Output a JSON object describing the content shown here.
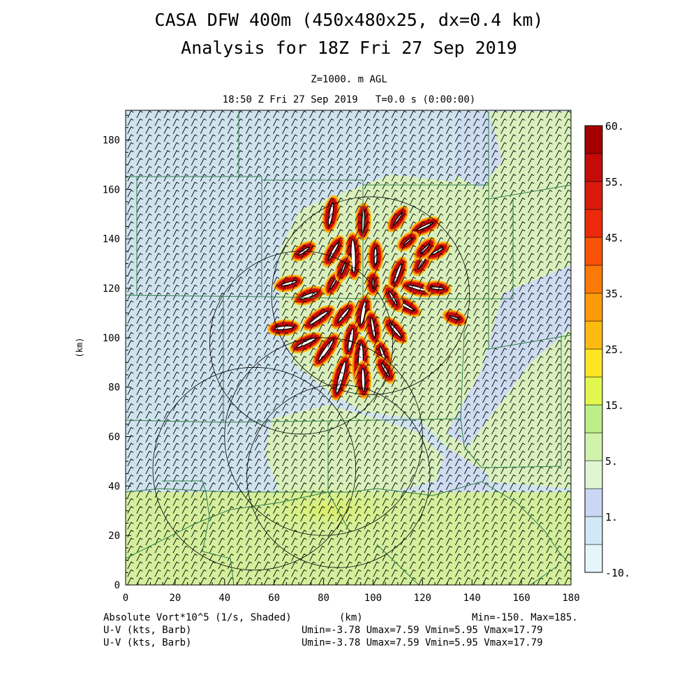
{
  "header": {
    "title_line1": "CASA DFW 400m (450x480x25, dx=0.4 km)",
    "title_line2": "Analysis for 18Z Fri 27 Sep 2019",
    "level": "Z=1000. m AGL",
    "valid_time": "18:50 Z Fri 27 Sep 2019   T=0.0 s (0:00:00)"
  },
  "footer": {
    "field_label": "Absolute Vort*10^5 (1/s, Shaded)",
    "xunit": "(km)",
    "minmax": "Min=-150. Max=185.",
    "barb1_label": "U-V (kts, Barb)",
    "barb1_stats": "Umin=-3.78 Umax=7.59 Vmin=5.95 Vmax=17.79",
    "barb2_label": "U-V (kts, Barb)",
    "barb2_stats": "Umin=-3.78 Umax=7.59 Vmin=5.95 Vmax=17.79"
  },
  "colors": {
    "level_fills": [
      "#e6f5fc",
      "#d2e8f7",
      "#cad6f3",
      "#e2f5d2",
      "#d0f2aa",
      "#bdee8a",
      "#e2f650",
      "#fde524",
      "#fdbb12",
      "#fc9a0a",
      "#fa7908",
      "#f95209",
      "#eb290b",
      "#d91a0c",
      "#c50b0a",
      "#a50000"
    ],
    "background_field": "#cfe3ef",
    "county_lines": "#2e7d47",
    "radar_rings": "#000000",
    "barbs": "#000000",
    "vortex_core": "#ffffff"
  },
  "chart_data": {
    "type": "heatmap",
    "title": "CASA DFW 400m (450x480x25, dx=0.4 km)",
    "subtitle": "Analysis for 18Z Fri 27 Sep 2019",
    "xlabel": "(km)",
    "ylabel": "(km)",
    "xlim": [
      0,
      180
    ],
    "ylim": [
      0,
      192
    ],
    "x_ticks": [
      0,
      20,
      40,
      60,
      80,
      100,
      120,
      140,
      160,
      180
    ],
    "y_ticks": [
      0,
      20,
      40,
      60,
      80,
      100,
      120,
      140,
      160,
      180
    ],
    "x_tick_labels": [
      "0",
      "20",
      "40",
      "60",
      "80",
      "100",
      "120",
      "140",
      "160",
      "180"
    ],
    "y_tick_labels": [
      "0",
      "20",
      "40",
      "60",
      "80",
      "100",
      "120",
      "140",
      "160",
      "180"
    ],
    "field": "Absolute Vort*10^5 (1/s, Shaded)",
    "field_min": -150,
    "field_max": 185,
    "colorbar": {
      "levels": [
        -10,
        1,
        5,
        15,
        25,
        35,
        45,
        55,
        60
      ],
      "labels": [
        "-10.",
        "1.",
        "5.",
        "15.",
        "25.",
        "35.",
        "45.",
        "55.",
        "60."
      ]
    },
    "radar_rings": [
      {
        "cx": 99,
        "cy": 117,
        "r": 40
      },
      {
        "cx": 71,
        "cy": 98,
        "r": 37
      },
      {
        "cx": 52,
        "cy": 47,
        "r": 41
      },
      {
        "cx": 80,
        "cy": 60,
        "r": 40
      },
      {
        "cx": 86,
        "cy": 44,
        "r": 37
      }
    ],
    "wind_barbs": {
      "u_min": -3.78,
      "u_max": 7.59,
      "v_min": 5.95,
      "v_max": 17.79,
      "units": "kts"
    },
    "vortex_streaks": [
      {
        "x": 83,
        "y": 150,
        "len": 10,
        "ang": 80,
        "w": 2.2
      },
      {
        "x": 96,
        "y": 147,
        "len": 10,
        "ang": 88,
        "w": 2.0
      },
      {
        "x": 84,
        "y": 135,
        "len": 9,
        "ang": 60,
        "w": 2.0
      },
      {
        "x": 92,
        "y": 133,
        "len": 14,
        "ang": 92,
        "w": 2.6
      },
      {
        "x": 101,
        "y": 133,
        "len": 8,
        "ang": 90,
        "w": 2.0
      },
      {
        "x": 110,
        "y": 126,
        "len": 9,
        "ang": 70,
        "w": 2.0
      },
      {
        "x": 120,
        "y": 131,
        "len": 8,
        "ang": 60,
        "w": 2.0
      },
      {
        "x": 126,
        "y": 135,
        "len": 6,
        "ang": 30,
        "w": 1.8
      },
      {
        "x": 121,
        "y": 145,
        "len": 8,
        "ang": 25,
        "w": 1.8
      },
      {
        "x": 110,
        "y": 148,
        "len": 7,
        "ang": 55,
        "w": 1.6
      },
      {
        "x": 72,
        "y": 135,
        "len": 6,
        "ang": 35,
        "w": 1.8
      },
      {
        "x": 66,
        "y": 122,
        "len": 7,
        "ang": 15,
        "w": 2.0
      },
      {
        "x": 74,
        "y": 117,
        "len": 8,
        "ang": 20,
        "w": 2.2
      },
      {
        "x": 78,
        "y": 108,
        "len": 10,
        "ang": 35,
        "w": 2.2
      },
      {
        "x": 64,
        "y": 104,
        "len": 8,
        "ang": 5,
        "w": 2.2
      },
      {
        "x": 88,
        "y": 109,
        "len": 8,
        "ang": 50,
        "w": 2.0
      },
      {
        "x": 96,
        "y": 110,
        "len": 10,
        "ang": 80,
        "w": 2.4
      },
      {
        "x": 91,
        "y": 99,
        "len": 10,
        "ang": 80,
        "w": 2.4
      },
      {
        "x": 81,
        "y": 95,
        "len": 11,
        "ang": 55,
        "w": 2.4
      },
      {
        "x": 73,
        "y": 98,
        "len": 9,
        "ang": 25,
        "w": 2.2
      },
      {
        "x": 87,
        "y": 84,
        "len": 14,
        "ang": 75,
        "w": 2.6
      },
      {
        "x": 95,
        "y": 90,
        "len": 16,
        "ang": 88,
        "w": 2.8
      },
      {
        "x": 104,
        "y": 93,
        "len": 8,
        "ang": 110,
        "w": 2.0
      },
      {
        "x": 109,
        "y": 103,
        "len": 8,
        "ang": 130,
        "w": 2.0
      },
      {
        "x": 113,
        "y": 113,
        "len": 9,
        "ang": 150,
        "w": 2.0
      },
      {
        "x": 118,
        "y": 120,
        "len": 9,
        "ang": 165,
        "w": 2.0
      },
      {
        "x": 108,
        "y": 116,
        "len": 7,
        "ang": 120,
        "w": 1.8
      },
      {
        "x": 100,
        "y": 104,
        "len": 9,
        "ang": 100,
        "w": 2.0
      },
      {
        "x": 96,
        "y": 83,
        "len": 10,
        "ang": 92,
        "w": 2.2
      },
      {
        "x": 105,
        "y": 87,
        "len": 7,
        "ang": 120,
        "w": 1.8
      },
      {
        "x": 126,
        "y": 120,
        "len": 6,
        "ang": 175,
        "w": 1.8
      },
      {
        "x": 133,
        "y": 108,
        "len": 5,
        "ang": 160,
        "w": 1.6
      },
      {
        "x": 84,
        "y": 122,
        "len": 6,
        "ang": 60,
        "w": 1.6
      },
      {
        "x": 88,
        "y": 128,
        "len": 6,
        "ang": 70,
        "w": 1.6
      },
      {
        "x": 121,
        "y": 136,
        "len": 6,
        "ang": 45,
        "w": 1.6
      },
      {
        "x": 114,
        "y": 139,
        "len": 5,
        "ang": 40,
        "w": 1.5
      },
      {
        "x": 100,
        "y": 122,
        "len": 5,
        "ang": 90,
        "w": 1.5
      }
    ]
  }
}
